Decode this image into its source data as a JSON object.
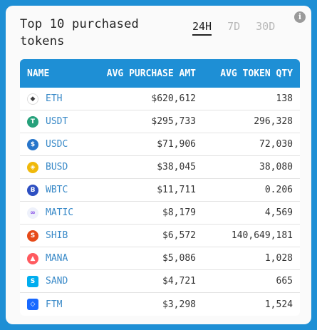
{
  "title": "Top 10 purchased tokens",
  "tabs": [
    "24H",
    "7D",
    "30D"
  ],
  "active_tab": "24H",
  "info_icon": "info-icon",
  "columns": {
    "name": "NAME",
    "amount": "AVG PURCHASE AMT",
    "qty": "AVG TOKEN QTY"
  },
  "colors": {
    "accent": "#1e8fd5",
    "link": "#3a8ac8"
  },
  "rows": [
    {
      "symbol": "ETH",
      "amount": "$620,612",
      "qty": "138",
      "icon": "ethereum-icon",
      "icon_bg": "#ffffff",
      "glyph": "◆",
      "glyph_color": "#3c3c3d"
    },
    {
      "symbol": "USDT",
      "amount": "$295,733",
      "qty": "296,328",
      "icon": "tether-icon",
      "icon_bg": "#26a17b",
      "glyph": "T",
      "glyph_color": "#ffffff"
    },
    {
      "symbol": "USDC",
      "amount": "$71,906",
      "qty": "72,030",
      "icon": "usdc-icon",
      "icon_bg": "#2775ca",
      "glyph": "$",
      "glyph_color": "#ffffff"
    },
    {
      "symbol": "BUSD",
      "amount": "$38,045",
      "qty": "38,080",
      "icon": "busd-icon",
      "icon_bg": "#f0b90b",
      "glyph": "◈",
      "glyph_color": "#ffffff"
    },
    {
      "symbol": "WBTC",
      "amount": "$11,711",
      "qty": "0.206",
      "icon": "wbtc-icon",
      "icon_bg": "#2d4fc2",
      "glyph": "B",
      "glyph_color": "#ffffff"
    },
    {
      "symbol": "MATIC",
      "amount": "$8,179",
      "qty": "4,569",
      "icon": "polygon-icon",
      "icon_bg": "#eef1fb",
      "glyph": "∞",
      "glyph_color": "#8247e5"
    },
    {
      "symbol": "SHIB",
      "amount": "$6,572",
      "qty": "140,649,181",
      "icon": "shiba-icon",
      "icon_bg": "#e64a19",
      "glyph": "S",
      "glyph_color": "#ffffff"
    },
    {
      "symbol": "MANA",
      "amount": "$5,086",
      "qty": "1,028",
      "icon": "decentraland-icon",
      "icon_bg": "#ff5a5f",
      "glyph": "▲",
      "glyph_color": "#ffffff"
    },
    {
      "symbol": "SAND",
      "amount": "$4,721",
      "qty": "665",
      "icon": "sandbox-icon",
      "icon_bg": "#00adef",
      "glyph": "S",
      "glyph_color": "#ffffff"
    },
    {
      "symbol": "FTM",
      "amount": "$3,298",
      "qty": "1,524",
      "icon": "fantom-icon",
      "icon_bg": "#1969ff",
      "glyph": "◇",
      "glyph_color": "#ffffff"
    }
  ]
}
